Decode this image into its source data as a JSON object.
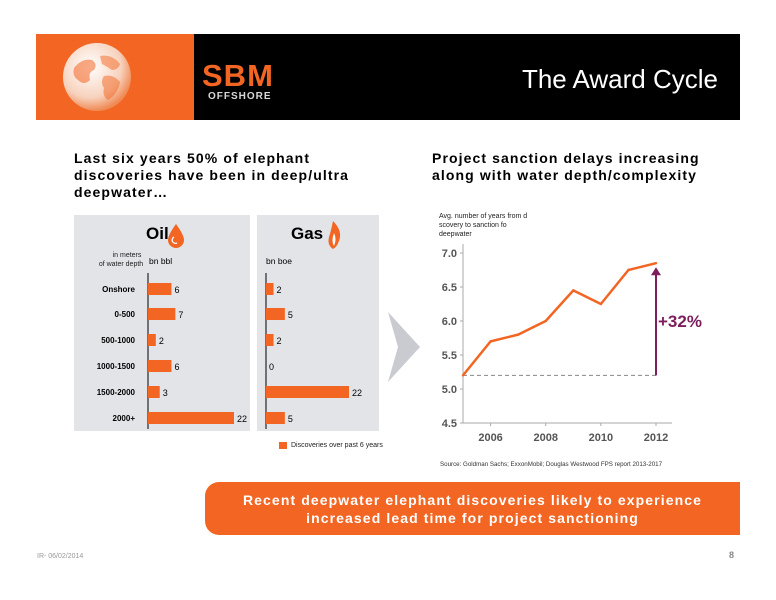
{
  "header": {
    "logo_text": "SBM",
    "logo_subtext": "OFFSHORE",
    "title": "The Award Cycle"
  },
  "left": {
    "heading": "Last six years 50% of elephant discoveries have been in deep/ultra deepwater…",
    "row_header": "in meters\nof water depth",
    "rows": [
      "Onshore",
      "0-500",
      "500-1000",
      "1000-1500",
      "1500-2000",
      "2000+"
    ],
    "oil": {
      "title": "Oil",
      "unit": "bn bbl",
      "values": [
        6,
        7,
        2,
        6,
        3,
        22
      ]
    },
    "gas": {
      "title": "Gas",
      "unit": "bn boe",
      "values": [
        2,
        5,
        2,
        0,
        22,
        5
      ]
    },
    "legend": "Discoveries over past 6 years",
    "bar_color": "#f26522"
  },
  "right": {
    "heading": "Project sanction delays increasing along with water depth/complexity",
    "source": "Source: Goldman Sachs; ExxonMobil; Douglas Westwood FPS report 2013-2017",
    "annotation": "+32%",
    "annotation_color": "#7d1f5c"
  },
  "chart_data": {
    "type": "line",
    "ylabel": "Avg. number of years from discovery to sanction for deepwater",
    "x": [
      2005,
      2006,
      2007,
      2008,
      2009,
      2010,
      2011,
      2012
    ],
    "values": [
      5.2,
      5.7,
      5.8,
      6.0,
      6.45,
      6.25,
      6.75,
      6.85
    ],
    "xticks": [
      "2006",
      "2008",
      "2010",
      "2012"
    ],
    "yticks": [
      "7.0",
      "6.5",
      "6.0",
      "5.5",
      "5.0",
      "4.5"
    ],
    "ylim": [
      4.5,
      7.0
    ],
    "baseline": 5.2,
    "line_color": "#f26522"
  },
  "banner": {
    "text": "Recent deepwater elephant discoveries likely to experience increased lead time for project sanctioning"
  },
  "footer": {
    "date": "IR- 06/02/2014",
    "page": "8"
  }
}
